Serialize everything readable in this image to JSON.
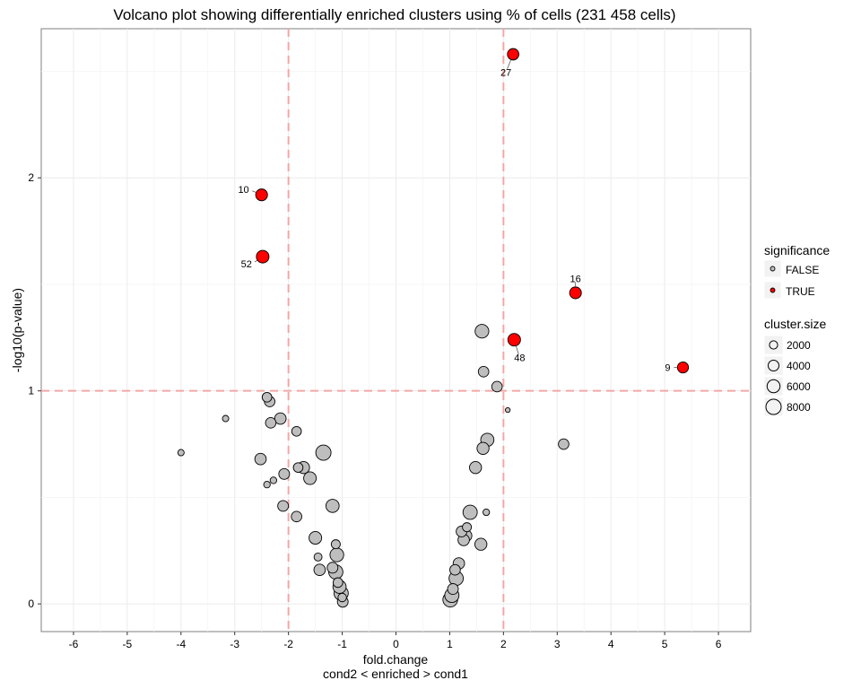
{
  "chart_data": {
    "type": "scatter",
    "title": "Volcano plot showing differentially enriched clusters using % of cells (231 458 cells)",
    "xlabel": "fold.change",
    "xlabel2": "cond2 < enriched > cond1",
    "ylabel": "-log10(p-value)",
    "xlim": [
      -6.6,
      6.6
    ],
    "ylim": [
      -0.13,
      2.7
    ],
    "xticks": [
      -6,
      -5,
      -4,
      -3,
      -2,
      -1,
      0,
      1,
      2,
      3,
      4,
      5,
      6
    ],
    "yticks": [
      0,
      1,
      2
    ],
    "grid": true,
    "thresholds": {
      "fold_change": [
        -2,
        2
      ],
      "neg_log10_pvalue": 1
    },
    "legend": {
      "placement": "right",
      "significance": {
        "title": "significance",
        "entries": [
          "FALSE",
          "TRUE"
        ]
      },
      "cluster_size": {
        "title": "cluster.size",
        "entries": [
          "2000",
          "4000",
          "6000",
          "8000"
        ]
      }
    },
    "colors": {
      "significant": "#ff0000",
      "not_significant": "#bebebe",
      "threshold_line": "#f4a6a6",
      "grid": "#ebebeb"
    },
    "points": [
      {
        "x": 2.18,
        "y": 2.58,
        "size": 4500,
        "significant": true,
        "label": "27"
      },
      {
        "x": -2.5,
        "y": 1.92,
        "size": 4800,
        "significant": true,
        "label": "10"
      },
      {
        "x": -2.48,
        "y": 1.63,
        "size": 5500,
        "significant": true,
        "label": "52"
      },
      {
        "x": 3.34,
        "y": 1.46,
        "size": 4800,
        "significant": true,
        "label": "16"
      },
      {
        "x": 2.2,
        "y": 1.24,
        "size": 5500,
        "significant": true,
        "label": "48"
      },
      {
        "x": 5.34,
        "y": 1.11,
        "size": 4200,
        "significant": true,
        "label": "9"
      },
      {
        "x": -4.0,
        "y": 0.71,
        "size": 1400,
        "significant": false
      },
      {
        "x": -3.17,
        "y": 0.87,
        "size": 1400,
        "significant": false
      },
      {
        "x": -2.4,
        "y": 0.97,
        "size": 3200,
        "significant": false
      },
      {
        "x": -2.35,
        "y": 0.95,
        "size": 3800,
        "significant": false
      },
      {
        "x": -2.33,
        "y": 0.85,
        "size": 3800,
        "significant": false
      },
      {
        "x": -2.15,
        "y": 0.87,
        "size": 4500,
        "significant": false
      },
      {
        "x": -2.52,
        "y": 0.68,
        "size": 4500,
        "significant": false
      },
      {
        "x": -2.4,
        "y": 0.56,
        "size": 1500,
        "significant": false
      },
      {
        "x": -2.28,
        "y": 0.58,
        "size": 1500,
        "significant": false
      },
      {
        "x": -2.08,
        "y": 0.61,
        "size": 4000,
        "significant": false
      },
      {
        "x": -1.85,
        "y": 0.81,
        "size": 3200,
        "significant": false
      },
      {
        "x": -1.82,
        "y": 0.64,
        "size": 3200,
        "significant": false
      },
      {
        "x": -1.72,
        "y": 0.64,
        "size": 5000,
        "significant": false
      },
      {
        "x": -1.6,
        "y": 0.59,
        "size": 5500,
        "significant": false
      },
      {
        "x": -1.35,
        "y": 0.71,
        "size": 8000,
        "significant": false
      },
      {
        "x": -2.1,
        "y": 0.46,
        "size": 4000,
        "significant": false
      },
      {
        "x": -1.85,
        "y": 0.41,
        "size": 3800,
        "significant": false
      },
      {
        "x": -1.18,
        "y": 0.46,
        "size": 6000,
        "significant": false
      },
      {
        "x": -1.5,
        "y": 0.31,
        "size": 5500,
        "significant": false
      },
      {
        "x": -1.45,
        "y": 0.22,
        "size": 2200,
        "significant": false
      },
      {
        "x": -1.42,
        "y": 0.16,
        "size": 4500,
        "significant": false
      },
      {
        "x": -1.12,
        "y": 0.28,
        "size": 2800,
        "significant": false
      },
      {
        "x": -1.1,
        "y": 0.23,
        "size": 6500,
        "significant": false
      },
      {
        "x": -1.18,
        "y": 0.17,
        "size": 4000,
        "significant": false
      },
      {
        "x": -1.12,
        "y": 0.15,
        "size": 7000,
        "significant": false
      },
      {
        "x": -1.08,
        "y": 0.1,
        "size": 3200,
        "significant": false
      },
      {
        "x": -1.05,
        "y": 0.08,
        "size": 6000,
        "significant": false
      },
      {
        "x": -1.02,
        "y": 0.05,
        "size": 7000,
        "significant": false
      },
      {
        "x": -1.0,
        "y": 0.03,
        "size": 2500,
        "significant": false
      },
      {
        "x": -0.99,
        "y": 0.01,
        "size": 4000,
        "significant": false
      },
      {
        "x": 1.01,
        "y": 0.02,
        "size": 7500,
        "significant": false
      },
      {
        "x": 1.04,
        "y": 0.04,
        "size": 7000,
        "significant": false
      },
      {
        "x": 1.06,
        "y": 0.07,
        "size": 4000,
        "significant": false
      },
      {
        "x": 1.12,
        "y": 0.12,
        "size": 7000,
        "significant": false
      },
      {
        "x": 1.1,
        "y": 0.16,
        "size": 3800,
        "significant": false
      },
      {
        "x": 1.17,
        "y": 0.19,
        "size": 4500,
        "significant": false
      },
      {
        "x": 1.26,
        "y": 0.3,
        "size": 4500,
        "significant": false
      },
      {
        "x": 1.3,
        "y": 0.32,
        "size": 5000,
        "significant": false
      },
      {
        "x": 1.22,
        "y": 0.34,
        "size": 4000,
        "significant": false
      },
      {
        "x": 1.32,
        "y": 0.36,
        "size": 2800,
        "significant": false
      },
      {
        "x": 1.38,
        "y": 0.43,
        "size": 7000,
        "significant": false
      },
      {
        "x": 1.58,
        "y": 0.28,
        "size": 5000,
        "significant": false
      },
      {
        "x": 1.68,
        "y": 0.43,
        "size": 1500,
        "significant": false
      },
      {
        "x": 1.48,
        "y": 0.64,
        "size": 5000,
        "significant": false
      },
      {
        "x": 1.62,
        "y": 0.73,
        "size": 5000,
        "significant": false
      },
      {
        "x": 1.7,
        "y": 0.77,
        "size": 6000,
        "significant": false
      },
      {
        "x": 1.63,
        "y": 1.09,
        "size": 3800,
        "significant": false
      },
      {
        "x": 1.88,
        "y": 1.02,
        "size": 3800,
        "significant": false
      },
      {
        "x": 1.6,
        "y": 1.28,
        "size": 6500,
        "significant": false
      },
      {
        "x": 2.08,
        "y": 0.91,
        "size": 800,
        "significant": false
      },
      {
        "x": 3.12,
        "y": 0.75,
        "size": 3800,
        "significant": false
      }
    ]
  }
}
